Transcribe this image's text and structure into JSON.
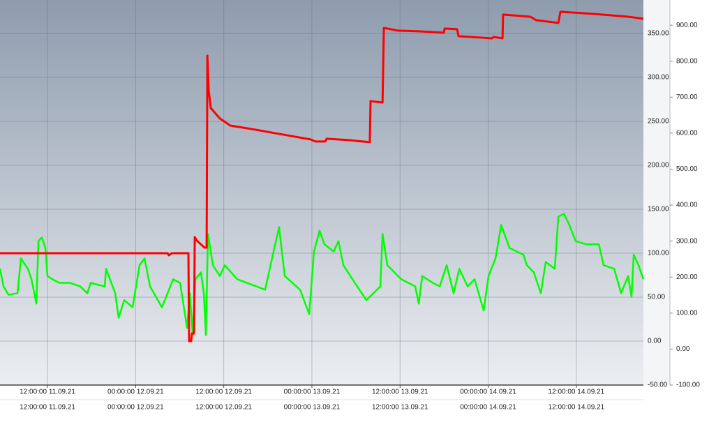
{
  "chart_data": {
    "type": "line",
    "xlim": [
      "11.09.21 05:32",
      "14.09.21 21:08"
    ],
    "xticks": [
      {
        "value": "11.09.21 12:00",
        "label": "12:00:00 11.09.21"
      },
      {
        "value": "12.09.21 00:00",
        "label": "00:00:00 12.09.21"
      },
      {
        "value": "12.09.21 12:00",
        "label": "12:00:00 12.09.21"
      },
      {
        "value": "13.09.21 00:00",
        "label": "00:00:00 13.09.21"
      },
      {
        "value": "13.09.21 12:00",
        "label": "12:00:00 13.09.21"
      },
      {
        "value": "14.09.21 00:00",
        "label": "00:00:00 14.09.21"
      },
      {
        "value": "14.09.21 12:00",
        "label": "12:00:00 14.09.21"
      }
    ],
    "ylim": [
      -50,
      388
    ],
    "yticks": [
      {
        "value": -50,
        "label": "-50.00"
      },
      {
        "value": 0,
        "label": "0.00"
      },
      {
        "value": 50,
        "label": "50.00"
      },
      {
        "value": 100,
        "label": "100.00"
      },
      {
        "value": 150,
        "label": "150.00"
      },
      {
        "value": 200,
        "label": "200.00"
      },
      {
        "value": 250,
        "label": "250.00"
      },
      {
        "value": 300,
        "label": "300.00"
      },
      {
        "value": 350,
        "label": "350.00"
      }
    ],
    "y2lim": [
      -100,
      970
    ],
    "y2ticks": [
      {
        "value": -100,
        "label": "-100.00"
      },
      {
        "value": 0,
        "label": "0.00"
      },
      {
        "value": 100,
        "label": "100.00"
      },
      {
        "value": 200,
        "label": "200.00"
      },
      {
        "value": 300,
        "label": "300.00"
      },
      {
        "value": 400,
        "label": "400.00"
      },
      {
        "value": 500,
        "label": "500.00"
      },
      {
        "value": 600,
        "label": "600.00"
      },
      {
        "value": 700,
        "label": "700.00"
      },
      {
        "value": 800,
        "label": "800.00"
      },
      {
        "value": 900,
        "label": "900.00"
      }
    ],
    "grid": true,
    "series": [
      {
        "color": "#ff0000",
        "x": [
          "11.09.21 05:32",
          "12.09.21 04:20",
          "12.09.21 04:32",
          "12.09.21 04:55",
          "12.09.21 07:11",
          "12.09.21 07:17",
          "12.09.21 07:34",
          "12.09.21 07:40",
          "12.09.21 07:57",
          "12.09.21 08:03",
          "12.09.21 08:20",
          "12.09.21 09:23",
          "12.09.21 09:40",
          "12.09.21 09:46",
          "12.09.21 09:57",
          "12.09.21 10:14",
          "12.09.21 11:28",
          "12.09.21 12:53",
          "12.09.21 15:44",
          "12.09.21 19:32",
          "12.09.21 23:49",
          "13.09.21 00:29",
          "13.09.21 01:49",
          "13.09.21 02:00",
          "13.09.21 05:03",
          "13.09.21 07:53",
          "13.09.21 07:59",
          "13.09.21 09:37",
          "13.09.21 09:48",
          "13.09.21 11:42",
          "13.09.21 14:33",
          "13.09.21 17:58",
          "13.09.21 18:04",
          "13.09.21 19:46",
          "13.09.21 19:58",
          "13.09.21 23:06",
          "14.09.21 00:31",
          "14.09.21 00:43",
          "14.09.21 01:57",
          "14.09.21 02:02",
          "14.09.21 05:45",
          "14.09.21 06:31",
          "14.09.21 09:33",
          "14.09.21 09:50",
          "14.09.21 14:18",
          "14.09.21 19:03",
          "14.09.21 21:08"
        ],
        "values": [
          100,
          100,
          97.6,
          100,
          100,
          0,
          0,
          8.7,
          8.7,
          118.3,
          114.3,
          106.3,
          106.3,
          324.6,
          284.9,
          265.1,
          253.2,
          245.2,
          241.3,
          235.7,
          229.4,
          227.0,
          227.0,
          230.2,
          228.6,
          226.2,
          273.0,
          271.4,
          356.3,
          353.2,
          352.4,
          350.8,
          355.6,
          354.8,
          346.8,
          345.2,
          344.4,
          346.0,
          344.4,
          371.4,
          369.0,
          365.1,
          361.9,
          374.6,
          372.2,
          369.0,
          366.7
        ]
      },
      {
        "color": "#00ff00",
        "axis": "y2",
        "x": [
          "11.09.21 05:32",
          "11.09.21 06:01",
          "11.09.21 06:41",
          "11.09.21 07:55",
          "11.09.21 08:23",
          "11.09.21 09:20",
          "11.09.21 09:49",
          "11.09.21 10:29",
          "11.09.21 10:46",
          "11.09.21 11:14",
          "11.09.21 11:43",
          "11.09.21 12:00",
          "11.09.21 12:40",
          "11.09.21 13:37",
          "11.09.21 15:02",
          "11.09.21 16:28",
          "11.09.21 17:25",
          "11.09.21 17:53",
          "11.09.21 19:47",
          "11.09.21 19:59",
          "11.09.21 21:13",
          "11.09.21 21:41",
          "11.09.21 22:27",
          "11.09.21 23:35",
          "12.09.21 00:32",
          "12.09.21 01:13",
          "12.09.21 01:58",
          "12.09.21 03:35",
          "12.09.21 05:06",
          "12.09.21 06:03",
          "12.09.21 06:43",
          "12.09.21 07:00",
          "12.09.21 07:23",
          "12.09.21 07:46",
          "12.09.21 08:08",
          "12.09.21 08:54",
          "12.09.21 09:17",
          "12.09.21 09:34",
          "12.09.21 09:51",
          "12.09.21 10:31",
          "12.09.21 11:28",
          "12.09.21 12:08",
          "12.09.21 13:50",
          "12.09.21 17:38",
          "12.09.21 18:47",
          "12.09.21 19:32",
          "12.09.21 20:18",
          "12.09.21 22:23",
          "12.09.21 23:38",
          "13.09.21 00:17",
          "13.09.21 01:03",
          "13.09.21 01:43",
          "13.09.21 02:57",
          "13.09.21 03:37",
          "13.09.21 04:17",
          "13.09.21 05:31",
          "13.09.21 07:25",
          "13.09.21 09:19",
          "13.09.21 09:37",
          "13.09.21 10:16",
          "13.09.21 12:10",
          "13.09.21 14:04",
          "13.09.21 14:33",
          "13.09.21 15:01",
          "13.09.21 16:27",
          "13.09.21 17:24",
          "13.09.21 18:21",
          "13.09.21 19:18",
          "13.09.21 20:04",
          "13.09.21 21:12",
          "13.09.21 22:09",
          "13.09.21 23:23",
          "14.09.21 00:03",
          "14.09.21 01:00",
          "14.09.21 01:46",
          "14.09.21 02:54",
          "14.09.21 04:48",
          "14.09.21 05:16",
          "14.09.21 06:13",
          "14.09.21 07:10",
          "14.09.21 07:50",
          "14.09.21 09:04",
          "14.09.21 09:33",
          "14.09.21 10:19",
          "14.09.21 10:58",
          "14.09.21 11:55",
          "14.09.21 13:21",
          "14.09.21 15:04",
          "14.09.21 15:43",
          "14.09.21 17:09",
          "14.09.21 18:06",
          "14.09.21 19:03",
          "14.09.21 19:31",
          "14.09.21 19:49",
          "14.09.21 20:28",
          "14.09.21 21:08"
        ],
        "values": [
          223,
          174,
          151,
          155,
          252,
          223,
          194,
          126,
          300,
          310,
          281,
          203,
          194,
          184,
          184,
          174,
          155,
          184,
          174,
          223,
          155,
          87,
          136,
          116,
          233,
          252,
          174,
          116,
          194,
          184,
          97,
          58,
          155,
          39,
          194,
          213,
          155,
          39,
          320,
          233,
          203,
          233,
          194,
          165,
          271,
          339,
          203,
          165,
          97,
          271,
          329,
          291,
          271,
          300,
          233,
          194,
          136,
          174,
          320,
          233,
          194,
          174,
          126,
          203,
          184,
          174,
          233,
          155,
          223,
          174,
          194,
          107,
          203,
          252,
          345,
          281,
          262,
          233,
          213,
          155,
          242,
          223,
          368,
          376,
          349,
          300,
          291,
          291,
          233,
          223,
          155,
          203,
          145,
          262,
          233,
          194
        ]
      }
    ]
  }
}
